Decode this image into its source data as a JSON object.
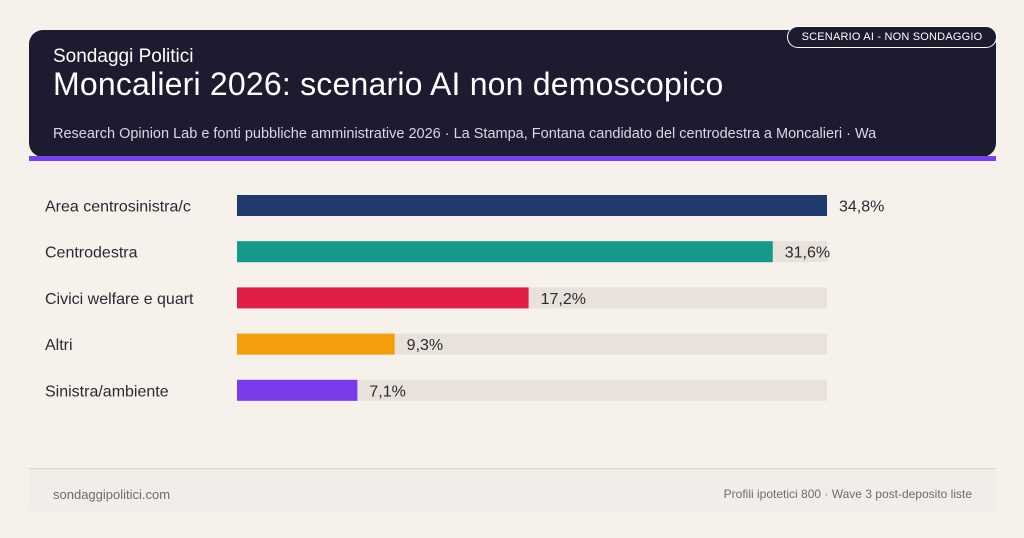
{
  "header": {
    "brand": "Sondaggi Politici",
    "title": "Moncalieri 2026: scenario AI non demoscopico",
    "source": "Research Opinion Lab e fonti pubbliche amministrative 2026 · La Stampa, Fontana candidato del centrodestra a Moncalieri · Wa",
    "badge": "SCENARIO AI - NON SONDAGGIO"
  },
  "colors": {
    "header_bg": "#1c1b30",
    "accent": "#7b3ff2",
    "track": "#e8e2db"
  },
  "chart_data": {
    "type": "bar",
    "orientation": "horizontal",
    "categories": [
      "Area centrosinistra/c",
      "Centrodestra",
      "Civici welfare e quart",
      "Altri",
      "Sinistra/ambiente"
    ],
    "values": [
      34.8,
      31.6,
      17.2,
      9.3,
      7.1
    ],
    "value_labels": [
      "34,8%",
      "31,6%",
      "17,2%",
      "9,3%",
      "7,1%"
    ],
    "colors": [
      "#1f3a6b",
      "#14998a",
      "#e11d48",
      "#f59e0b",
      "#7c3aed"
    ],
    "xlim": [
      0,
      34.8
    ]
  },
  "footer": {
    "site": "sondaggipolitici.com",
    "note": "Profili ipotetici 800 · Wave 3 post-deposito liste"
  }
}
